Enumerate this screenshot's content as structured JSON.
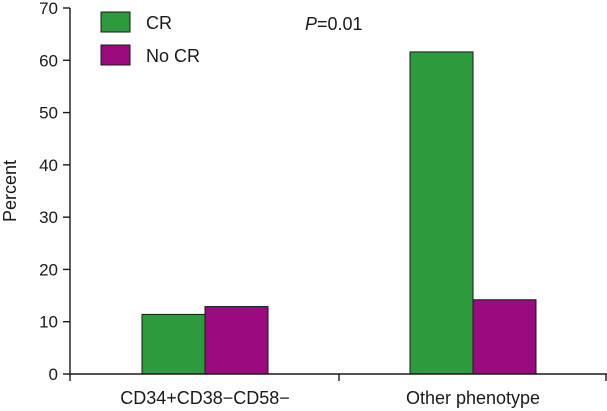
{
  "chart_data": {
    "type": "bar",
    "title": "",
    "xlabel": "",
    "ylabel": "Percent",
    "ylim": [
      0,
      70
    ],
    "yticks": [
      0,
      10,
      20,
      30,
      40,
      50,
      60,
      70
    ],
    "categories": [
      "CD34+CD38−CD58−",
      "Other phenotype"
    ],
    "series": [
      {
        "name": "CR",
        "color": "#2e9a3e",
        "values": [
          11.4,
          61.6
        ]
      },
      {
        "name": "No CR",
        "color": "#9b0a7e",
        "values": [
          12.9,
          14.2
        ]
      }
    ],
    "legend_position": "top-left",
    "annotation": {
      "p_symbol": "P",
      "p_value": "=0.01"
    },
    "grid": false
  }
}
